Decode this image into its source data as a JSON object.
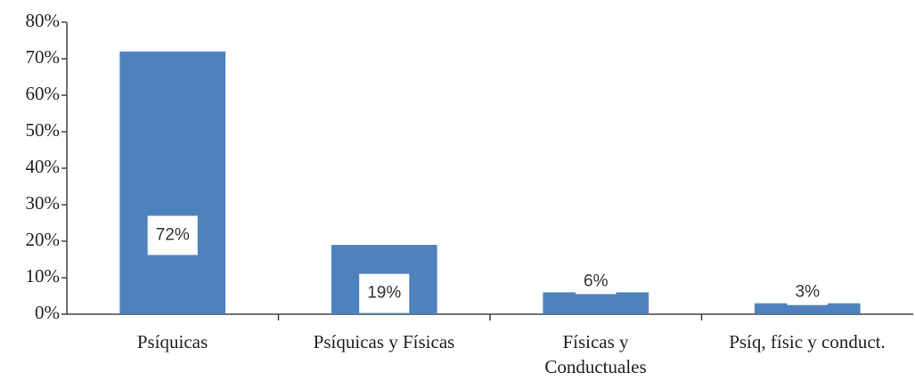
{
  "chart_data": {
    "type": "bar",
    "categories": [
      "Psíquicas",
      "Psíquicas y Físicas",
      "Físicas y\nConductuales",
      "Psíq, físic y conduct."
    ],
    "values": [
      72,
      19,
      6,
      3
    ],
    "value_labels": [
      "72%",
      "19%",
      "6%",
      "3%"
    ],
    "color": "#4f81bd",
    "ylim": [
      0,
      80
    ],
    "yticks": [
      {
        "value": 0,
        "label": "0%"
      },
      {
        "value": 10,
        "label": "10%"
      },
      {
        "value": 20,
        "label": "20%"
      },
      {
        "value": 30,
        "label": "30%"
      },
      {
        "value": 40,
        "label": "40%"
      },
      {
        "value": 50,
        "label": "50%"
      },
      {
        "value": 60,
        "label": "60%"
      },
      {
        "value": 70,
        "label": "70%"
      },
      {
        "value": 80,
        "label": "80%"
      }
    ],
    "grid": false
  }
}
